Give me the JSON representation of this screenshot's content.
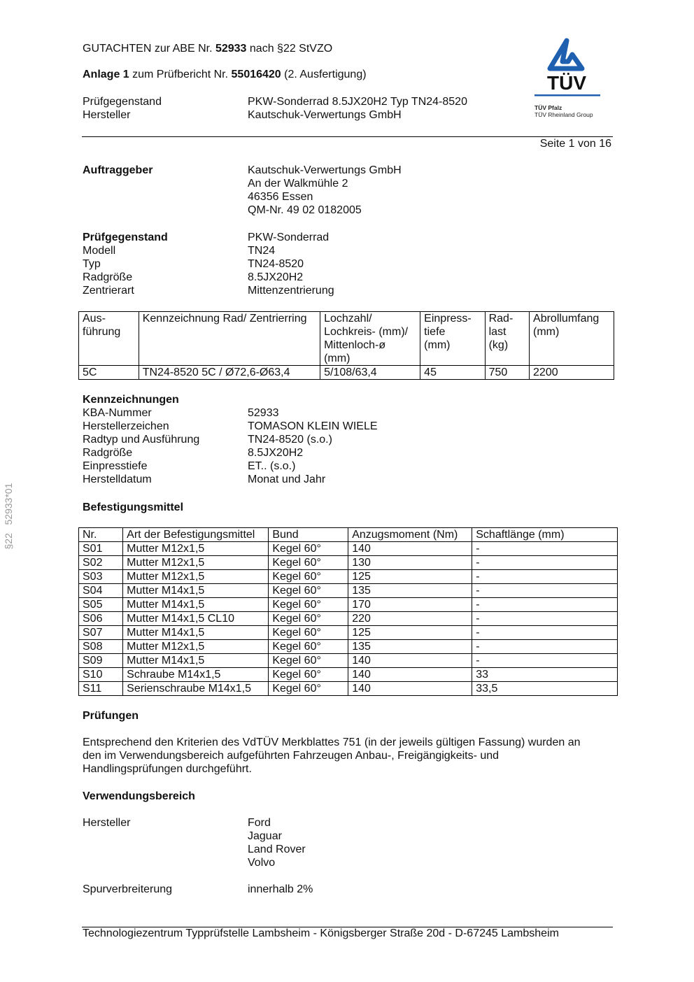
{
  "header": {
    "line1_pre": "GUTACHTEN zur ABE Nr. ",
    "line1_num": "52933",
    "line1_post": " nach §22 StVZO",
    "line2_pre": "Anlage 1",
    "line2_mid": " zum Prüfbericht Nr. ",
    "line2_num": "55016420",
    "line2_post": " (2. Ausfertigung)",
    "rows": [
      {
        "k": "Prüfgegenstand",
        "v": "PKW-Sonderrad 8.5JX20H2 Typ TN24-8520"
      },
      {
        "k": "Hersteller",
        "v": "Kautschuk-Verwertungs GmbH"
      }
    ],
    "page": "Seite 1 von 16"
  },
  "logo": {
    "text": "TÜV",
    "sub1": "TÜV Pfalz",
    "sub2": "TÜV Rheinland Group",
    "color": "#1f5fb0"
  },
  "side_note": "§22   52933*01",
  "auftraggeber": {
    "label": "Auftraggeber",
    "lines": [
      "Kautschuk-Verwertungs GmbH",
      "An der Walkmühle 2",
      "46356 Essen",
      "QM-Nr. 49 02 0182005"
    ]
  },
  "pruefgegenstand": {
    "label": "Prüfgegenstand",
    "value": "PKW-Sonderrad",
    "rows": [
      {
        "k": "Modell",
        "v": "TN24"
      },
      {
        "k": "Typ",
        "v": "TN24-8520"
      },
      {
        "k": "Radgröße",
        "v": "8.5JX20H2"
      },
      {
        "k": "Zentrierart",
        "v": "Mittenzentrierung"
      }
    ]
  },
  "table1": {
    "headers": [
      [
        "Aus-",
        "führung"
      ],
      [
        "Kennzeichnung Rad/ Zentrierring"
      ],
      [
        "Lochzahl/",
        "Lochkreis- (mm)/",
        "Mittenloch-ø",
        "(mm)"
      ],
      [
        "Einpress-",
        "tiefe",
        "(mm)"
      ],
      [
        "Rad-",
        "last",
        "(kg)"
      ],
      [
        "Abrollumfang",
        "(mm)"
      ]
    ],
    "rows": [
      [
        "5C",
        "TN24-8520 5C / Ø72,6-Ø63,4",
        "5/108/63,4",
        "45",
        "750",
        "2200"
      ]
    ]
  },
  "kennzeichnungen": {
    "label": "Kennzeichnungen",
    "rows": [
      {
        "k": "KBA-Nummer",
        "v": "52933"
      },
      {
        "k": "Herstellerzeichen",
        "v": "TOMASON KLEIN WIELE"
      },
      {
        "k": "Radtyp und Ausführung",
        "v": "TN24-8520 (s.o.)"
      },
      {
        "k": "Radgröße",
        "v": "8.5JX20H2"
      },
      {
        "k": "Einpresstiefe",
        "v": "ET.. (s.o.)"
      },
      {
        "k": "Herstelldatum",
        "v": "Monat und Jahr"
      }
    ]
  },
  "befestigung": {
    "label": "Befestigungsmittel",
    "headers": [
      "Nr.",
      "Art der Befestigungsmittel",
      "Bund",
      "Anzugsmoment (Nm)",
      "Schaftlänge (mm)"
    ],
    "rows": [
      [
        "S01",
        "Mutter M12x1,5",
        "Kegel 60°",
        "140",
        "-"
      ],
      [
        "S02",
        "Mutter M12x1,5",
        "Kegel 60°",
        "130",
        "-"
      ],
      [
        "S03",
        "Mutter M12x1,5",
        "Kegel 60°",
        "125",
        "-"
      ],
      [
        "S04",
        "Mutter M14x1,5",
        "Kegel 60°",
        "135",
        "-"
      ],
      [
        "S05",
        "Mutter M14x1,5",
        "Kegel 60°",
        "170",
        "-"
      ],
      [
        "S06",
        "Mutter M14x1,5 CL10",
        "Kegel 60°",
        "220",
        "-"
      ],
      [
        "S07",
        "Mutter M14x1,5",
        "Kegel 60°",
        "125",
        "-"
      ],
      [
        "S08",
        "Mutter M12x1,5",
        "Kegel 60°",
        "135",
        "-"
      ],
      [
        "S09",
        "Mutter M14x1,5",
        "Kegel 60°",
        "140",
        "-"
      ],
      [
        "S10",
        "Schraube M14x1,5",
        "Kegel 60°",
        "140",
        "33"
      ],
      [
        "S11",
        "Serienschraube M14x1,5",
        "Kegel 60°",
        "140",
        "33,5"
      ]
    ]
  },
  "pruefungen": {
    "label": "Prüfungen",
    "lines": [
      "Entsprechend den Kriterien des VdTÜV Merkblattes 751 (in der jeweils gültigen Fassung) wurden an",
      "den im Verwendungsbereich aufgeführten Fahrzeugen Anbau-, Freigängigkeits- und",
      "Handlingsprüfungen durchgeführt."
    ]
  },
  "verwendung": {
    "label": "Verwendungsbereich",
    "hersteller_label": "Hersteller",
    "hersteller": [
      "Ford",
      "Jaguar",
      "Land Rover",
      "Volvo"
    ],
    "spur_label": "Spurverbreiterung",
    "spur_value": "innerhalb 2%"
  },
  "footer": "Technologiezentrum Typprüfstelle Lambsheim - Königsberger Straße 20d - D-67245 Lambsheim"
}
